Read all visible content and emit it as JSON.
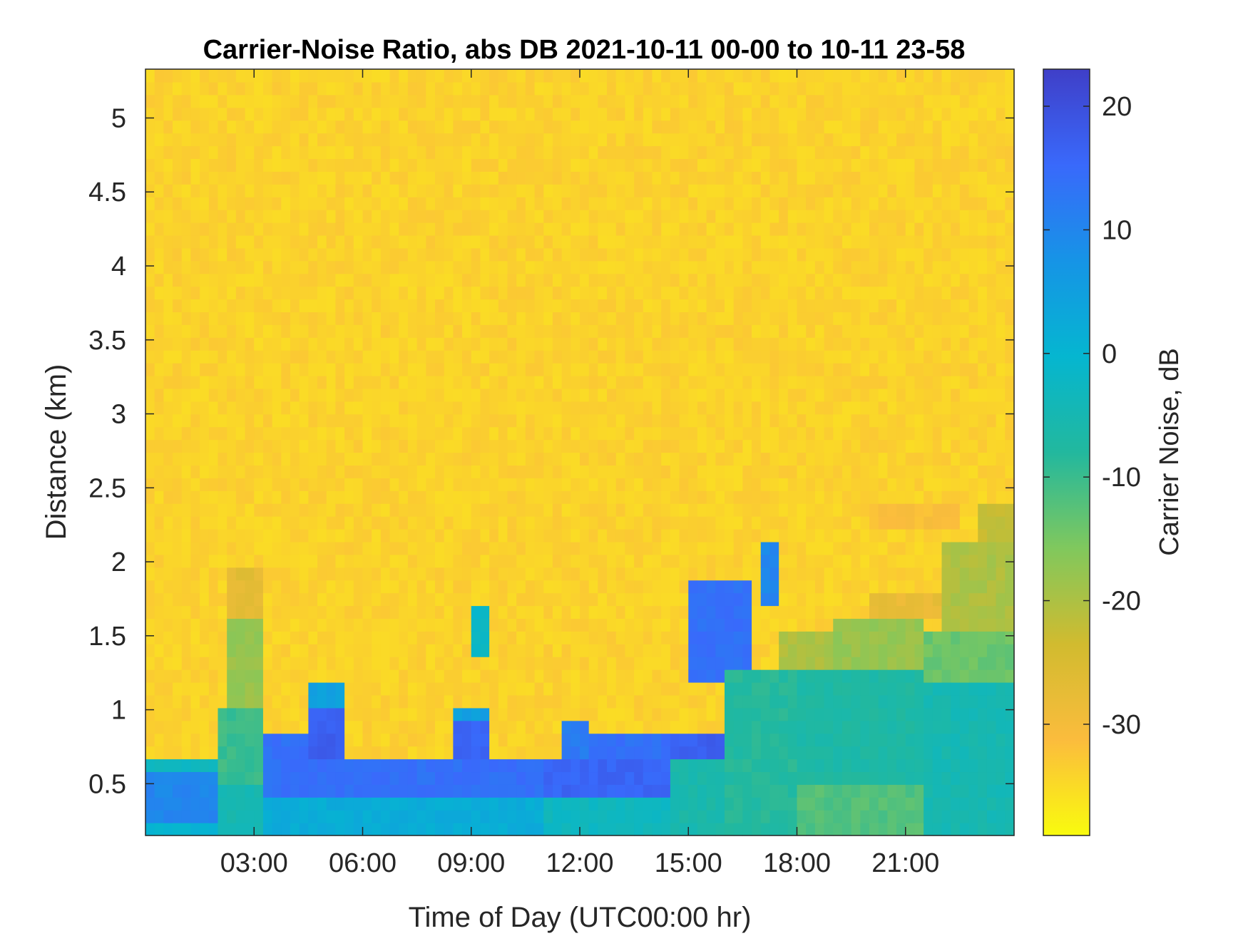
{
  "chart_data": {
    "type": "heatmap",
    "title": "Carrier-Noise Ratio, abs DB 2021-10-11 00-00 to 10-11 23-58",
    "xlabel": "Time of Day (UTC00:00 hr)",
    "ylabel": "Distance (km)",
    "colorbar_label": "Carrier Noise, dB",
    "xlim": [
      0,
      24
    ],
    "ylim": [
      0.15,
      5.33
    ],
    "x_ticks": [
      {
        "value": 3,
        "label": "03:00"
      },
      {
        "value": 6,
        "label": "06:00"
      },
      {
        "value": 9,
        "label": "09:00"
      },
      {
        "value": 12,
        "label": "12:00"
      },
      {
        "value": 15,
        "label": "15:00"
      },
      {
        "value": 18,
        "label": "18:00"
      },
      {
        "value": 21,
        "label": "21:00"
      }
    ],
    "y_ticks": [
      {
        "value": 0.5,
        "label": "0.5"
      },
      {
        "value": 1.0,
        "label": "1"
      },
      {
        "value": 1.5,
        "label": "1.5"
      },
      {
        "value": 2.0,
        "label": "2"
      },
      {
        "value": 2.5,
        "label": "2.5"
      },
      {
        "value": 3.0,
        "label": "3"
      },
      {
        "value": 3.5,
        "label": "3.5"
      },
      {
        "value": 4.0,
        "label": "4"
      },
      {
        "value": 4.5,
        "label": "4.5"
      },
      {
        "value": 5.0,
        "label": "5"
      }
    ],
    "colorbar": {
      "clim": [
        -39,
        23
      ],
      "ticks": [
        {
          "value": -30,
          "label": "-30"
        },
        {
          "value": -20,
          "label": "-20"
        },
        {
          "value": -10,
          "label": "-10"
        },
        {
          "value": 0,
          "label": "0"
        },
        {
          "value": 10,
          "label": "10"
        },
        {
          "value": 20,
          "label": "20"
        }
      ],
      "colormap": "parula_reversed",
      "stops": [
        "#f9fb0e",
        "#fbbc3d",
        "#d1bb2f",
        "#80c85d",
        "#22b89e",
        "#05b6d0",
        "#1694e6",
        "#3969fb",
        "#3f3fc8"
      ]
    },
    "background_value": -34,
    "regions": [
      {
        "t": [
          0,
          2
        ],
        "d": [
          0.15,
          0.25
        ],
        "value": 0
      },
      {
        "t": [
          0,
          2
        ],
        "d": [
          0.25,
          0.55
        ],
        "value": 10
      },
      {
        "t": [
          0,
          2
        ],
        "d": [
          0.55,
          0.67
        ],
        "value": -3
      },
      {
        "t": [
          2,
          3.3
        ],
        "d": [
          0.15,
          0.5
        ],
        "value": -5
      },
      {
        "t": [
          2,
          3.3
        ],
        "d": [
          0.5,
          1.0
        ],
        "value": -10
      },
      {
        "t": [
          2.3,
          3.3
        ],
        "d": [
          1.0,
          1.6
        ],
        "value": -18
      },
      {
        "t": [
          2.3,
          3.3
        ],
        "d": [
          1.6,
          2.0
        ],
        "value": -27
      },
      {
        "t": [
          3.3,
          11
        ],
        "d": [
          0.15,
          0.45
        ],
        "value": 2
      },
      {
        "t": [
          3.3,
          11
        ],
        "d": [
          0.45,
          0.7
        ],
        "value": 14
      },
      {
        "t": [
          3.3,
          4.5
        ],
        "d": [
          0.7,
          0.8
        ],
        "value": 14
      },
      {
        "t": [
          4.5,
          5.5
        ],
        "d": [
          0.7,
          1.0
        ],
        "value": 17
      },
      {
        "t": [
          4.5,
          5.5
        ],
        "d": [
          1.0,
          1.2
        ],
        "value": 5
      },
      {
        "t": [
          8.5,
          9.5
        ],
        "d": [
          0.7,
          0.9
        ],
        "value": 16
      },
      {
        "t": [
          8.5,
          9.5
        ],
        "d": [
          0.9,
          1.0
        ],
        "value": 5
      },
      {
        "t": [
          9.0,
          9.4
        ],
        "d": [
          1.4,
          1.7
        ],
        "value": -2
      },
      {
        "t": [
          11,
          15
        ],
        "d": [
          0.15,
          0.45
        ],
        "value": -3
      },
      {
        "t": [
          11,
          15
        ],
        "d": [
          0.45,
          0.7
        ],
        "value": 16
      },
      {
        "t": [
          11.5,
          12.2
        ],
        "d": [
          0.7,
          0.9
        ],
        "value": 12
      },
      {
        "t": [
          12.2,
          14.5
        ],
        "d": [
          0.7,
          0.8
        ],
        "value": 14
      },
      {
        "t": [
          14.5,
          16.7
        ],
        "d": [
          0.15,
          0.7
        ],
        "value": -6
      },
      {
        "t": [
          14.5,
          16.0
        ],
        "d": [
          0.7,
          0.8
        ],
        "value": 17
      },
      {
        "t": [
          15.0,
          16.7
        ],
        "d": [
          1.2,
          1.9
        ],
        "value": 14
      },
      {
        "t": [
          17.1,
          17.4
        ],
        "d": [
          1.7,
          2.1
        ],
        "value": 10
      },
      {
        "t": [
          16.0,
          18.0
        ],
        "d": [
          0.15,
          1.3
        ],
        "value": -8
      },
      {
        "t": [
          17.5,
          19.5
        ],
        "d": [
          1.3,
          1.5
        ],
        "value": -20
      },
      {
        "t": [
          18.0,
          21.5
        ],
        "d": [
          0.15,
          0.5
        ],
        "value": -12
      },
      {
        "t": [
          18.0,
          21.5
        ],
        "d": [
          0.5,
          1.3
        ],
        "value": -7
      },
      {
        "t": [
          19.0,
          21.5
        ],
        "d": [
          1.3,
          1.6
        ],
        "value": -18
      },
      {
        "t": [
          20.0,
          22.0
        ],
        "d": [
          1.6,
          1.8
        ],
        "value": -28
      },
      {
        "t": [
          21.5,
          24
        ],
        "d": [
          0.15,
          1.2
        ],
        "value": -5
      },
      {
        "t": [
          21.5,
          24
        ],
        "d": [
          1.2,
          1.5
        ],
        "value": -14
      },
      {
        "t": [
          22.0,
          24
        ],
        "d": [
          1.5,
          2.1
        ],
        "value": -20
      },
      {
        "t": [
          23.0,
          24
        ],
        "d": [
          2.1,
          2.4
        ],
        "value": -22
      },
      {
        "t": [
          20.0,
          22.5
        ],
        "d": [
          2.2,
          2.4
        ],
        "value": -31
      }
    ]
  }
}
